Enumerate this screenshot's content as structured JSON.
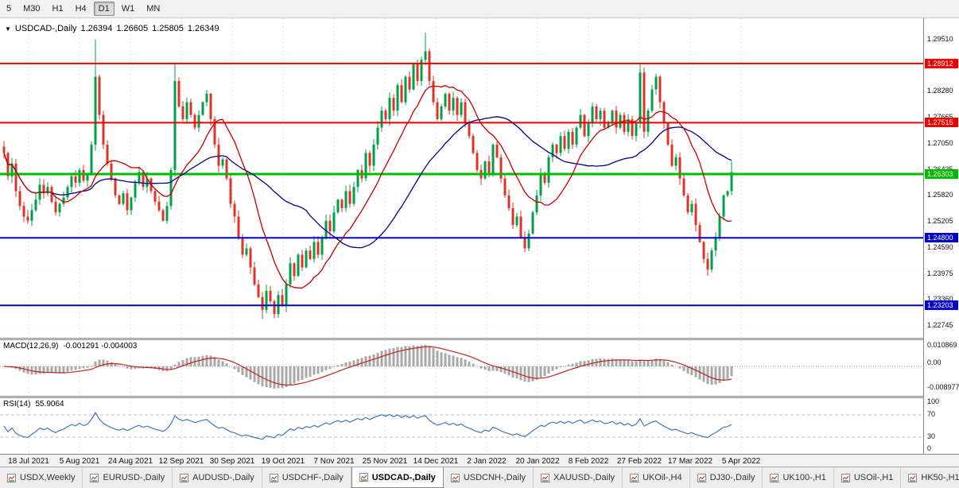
{
  "toolbar": {
    "timeframes": [
      {
        "label": "5",
        "active": false
      },
      {
        "label": "M30",
        "active": false
      },
      {
        "label": "H1",
        "active": false
      },
      {
        "label": "H4",
        "active": false
      },
      {
        "label": "D1",
        "active": true
      },
      {
        "label": "W1",
        "active": false
      },
      {
        "label": "MN",
        "active": false
      }
    ]
  },
  "chart": {
    "title": "USDCAD-,Daily",
    "ohlc": {
      "open": "1.26394",
      "high": "1.26605",
      "low": "1.25805",
      "close": "1.26349"
    }
  },
  "macd_panel": {
    "label": "MACD(12,26,9)",
    "values": "-0.001291 -0.004003",
    "axis": [
      "0.010869",
      "0.00",
      "-0.008977"
    ]
  },
  "rsi_panel": {
    "label": "RSI(14)",
    "value": "55.9064",
    "axis": [
      "100",
      "70",
      "30",
      "0"
    ],
    "levels": [
      70,
      30
    ]
  },
  "chart_data": {
    "type": "candlestick",
    "symbol": "USDCAD",
    "timeframe": "Daily",
    "price_range": {
      "top": 1.2998,
      "bottom": 1.2244
    },
    "y_ticks": [
      1.2951,
      1.2828,
      1.27665,
      1.2705,
      1.26435,
      1.2582,
      1.25205,
      1.2459,
      1.23975,
      1.2336,
      1.22745
    ],
    "levels": [
      {
        "price": 1.28912,
        "label": "1.28912",
        "color": "#ee0000",
        "width": 2
      },
      {
        "price": 1.27515,
        "label": "1.27515",
        "color": "#ee0000",
        "width": 2
      },
      {
        "price": 1.26303,
        "label": "1.26303",
        "color": "#00bb00",
        "width": 3
      },
      {
        "price": 1.248,
        "label": "1.24800",
        "color": "#0000cc",
        "width": 2
      },
      {
        "price": 1.23203,
        "label": "1.23203",
        "color": "#0000cc",
        "width": 2
      }
    ],
    "x_labels": [
      "18 Jul 2021",
      "5 Aug 2021",
      "24 Aug 2021",
      "12 Sep 2021",
      "30 Sep 2021",
      "19 Oct 2021",
      "7 Nov 2021",
      "25 Nov 2021",
      "14 Dec 2021",
      "2 Jan 2022",
      "20 Jan 2022",
      "8 Feb 2022",
      "27 Feb 2022",
      "17 Mar 2022",
      "5 Apr 2022"
    ],
    "closes": [
      1.268,
      1.2625,
      1.2655,
      1.259,
      1.2555,
      1.253,
      1.252,
      1.2545,
      1.257,
      1.2605,
      1.2585,
      1.26,
      1.2565,
      1.254,
      1.256,
      1.2575,
      1.26,
      1.2625,
      1.261,
      1.264,
      1.2615,
      1.263,
      1.27,
      1.286,
      1.277,
      1.27,
      1.2655,
      1.262,
      1.258,
      1.256,
      1.2585,
      1.2545,
      1.2575,
      1.261,
      1.2635,
      1.26,
      1.262,
      1.259,
      1.2565,
      1.2545,
      1.252,
      1.2555,
      1.264,
      1.285,
      1.279,
      1.276,
      1.28,
      1.277,
      1.274,
      1.277,
      1.28,
      1.282,
      1.276,
      1.27,
      1.265,
      1.2665,
      1.262,
      1.256,
      1.253,
      1.248,
      1.244,
      1.2455,
      1.241,
      1.237,
      1.234,
      1.231,
      1.2355,
      1.233,
      1.23,
      1.2345,
      1.232,
      1.237,
      1.242,
      1.239,
      1.244,
      1.241,
      1.245,
      1.243,
      1.247,
      1.244,
      1.248,
      1.252,
      1.2495,
      1.254,
      1.257,
      1.255,
      1.259,
      1.256,
      1.26,
      1.264,
      1.262,
      1.268,
      1.265,
      1.27,
      1.274,
      1.278,
      1.276,
      1.281,
      1.278,
      1.284,
      1.28,
      1.286,
      1.283,
      1.289,
      1.285,
      1.29,
      1.292,
      1.285,
      1.28,
      1.276,
      1.279,
      1.282,
      1.278,
      1.281,
      1.277,
      1.28,
      1.275,
      1.272,
      1.268,
      1.264,
      1.262,
      1.266,
      1.263,
      1.27,
      1.267,
      1.262,
      1.258,
      1.255,
      1.251,
      1.253,
      1.248,
      1.2455,
      1.249,
      1.254,
      1.258,
      1.263,
      1.261,
      1.267,
      1.27,
      1.268,
      1.272,
      1.269,
      1.273,
      1.27,
      1.274,
      1.277,
      1.272,
      1.275,
      1.279,
      1.276,
      1.278,
      1.274,
      1.275,
      1.278,
      1.274,
      1.277,
      1.273,
      1.276,
      1.272,
      1.275,
      1.287,
      1.273,
      1.278,
      1.283,
      1.286,
      1.28,
      1.275,
      1.27,
      1.265,
      1.267,
      1.262,
      1.258,
      1.254,
      1.256,
      1.251,
      1.247,
      1.243,
      1.2405,
      1.245,
      1.248,
      1.253,
      1.258,
      1.259,
      1.26349
    ],
    "wick_overrides": {
      "23": [
        1.2948,
        null
      ],
      "43": [
        1.289,
        null
      ],
      "65": [
        null,
        1.2288
      ],
      "68": [
        null,
        1.229
      ],
      "106": [
        1.2964,
        null
      ],
      "160": [
        1.2892,
        null
      ],
      "177": [
        null,
        1.239
      ],
      "183": [
        1.26605,
        1.25805
      ]
    },
    "colors": {
      "up": "#00A04A",
      "down": "#DC3428",
      "ma_fast": "#c40000",
      "ma_slow": "#00008B",
      "macd_hist": "#a8a8a8",
      "macd_signal": "#c42222",
      "rsi": "#3f78c0",
      "grid": "#e5e5e5"
    }
  },
  "tabs": [
    {
      "label": "USDX,Weekly",
      "active": false
    },
    {
      "label": "EURUSD-,Daily",
      "active": false
    },
    {
      "label": "AUDUSD-,Daily",
      "active": false
    },
    {
      "label": "USDCHF-,Daily",
      "active": false
    },
    {
      "label": "USDCAD-,Daily",
      "active": true
    },
    {
      "label": "USDCNH-,Daily",
      "active": false
    },
    {
      "label": "XAUUSD-,Daily",
      "active": false
    },
    {
      "label": "UKOil-,H4",
      "active": false
    },
    {
      "label": "DJ30-,Daily",
      "active": false
    },
    {
      "label": "UK100-,H1",
      "active": false
    },
    {
      "label": "USOil-,H1",
      "active": false
    },
    {
      "label": "HK50-,H1",
      "active": false
    }
  ]
}
